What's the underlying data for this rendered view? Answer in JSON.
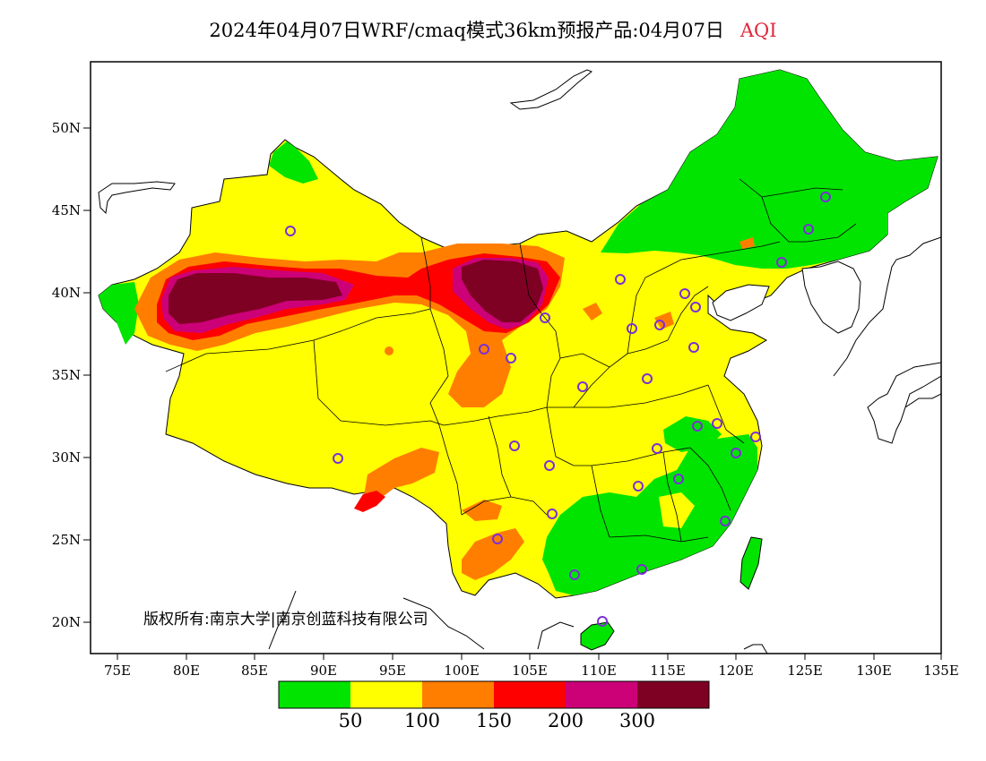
{
  "title": {
    "main": "2024年04月07日WRF/cmaq模式36km预报产品:04月07日",
    "variable": "AQI"
  },
  "axes": {
    "lat_labels": [
      "20N",
      "25N",
      "30N",
      "35N",
      "40N",
      "45N",
      "50N"
    ],
    "lon_labels": [
      "75E",
      "80E",
      "85E",
      "90E",
      "95E",
      "100E",
      "105E",
      "110E",
      "115E",
      "120E",
      "125E",
      "130E",
      "135E"
    ]
  },
  "copyright": "版权所有:南京大学|南京创蓝科技有限公司",
  "legend": {
    "colors": [
      "#00e400",
      "#ffff00",
      "#ff7e00",
      "#ff0000",
      "#cc0077",
      "#7e0023"
    ],
    "labels": [
      "50",
      "100",
      "150",
      "200",
      "300"
    ]
  },
  "palette": {
    "ocean_outline": "#000000",
    "station_marker": "#7b2fd6"
  }
}
